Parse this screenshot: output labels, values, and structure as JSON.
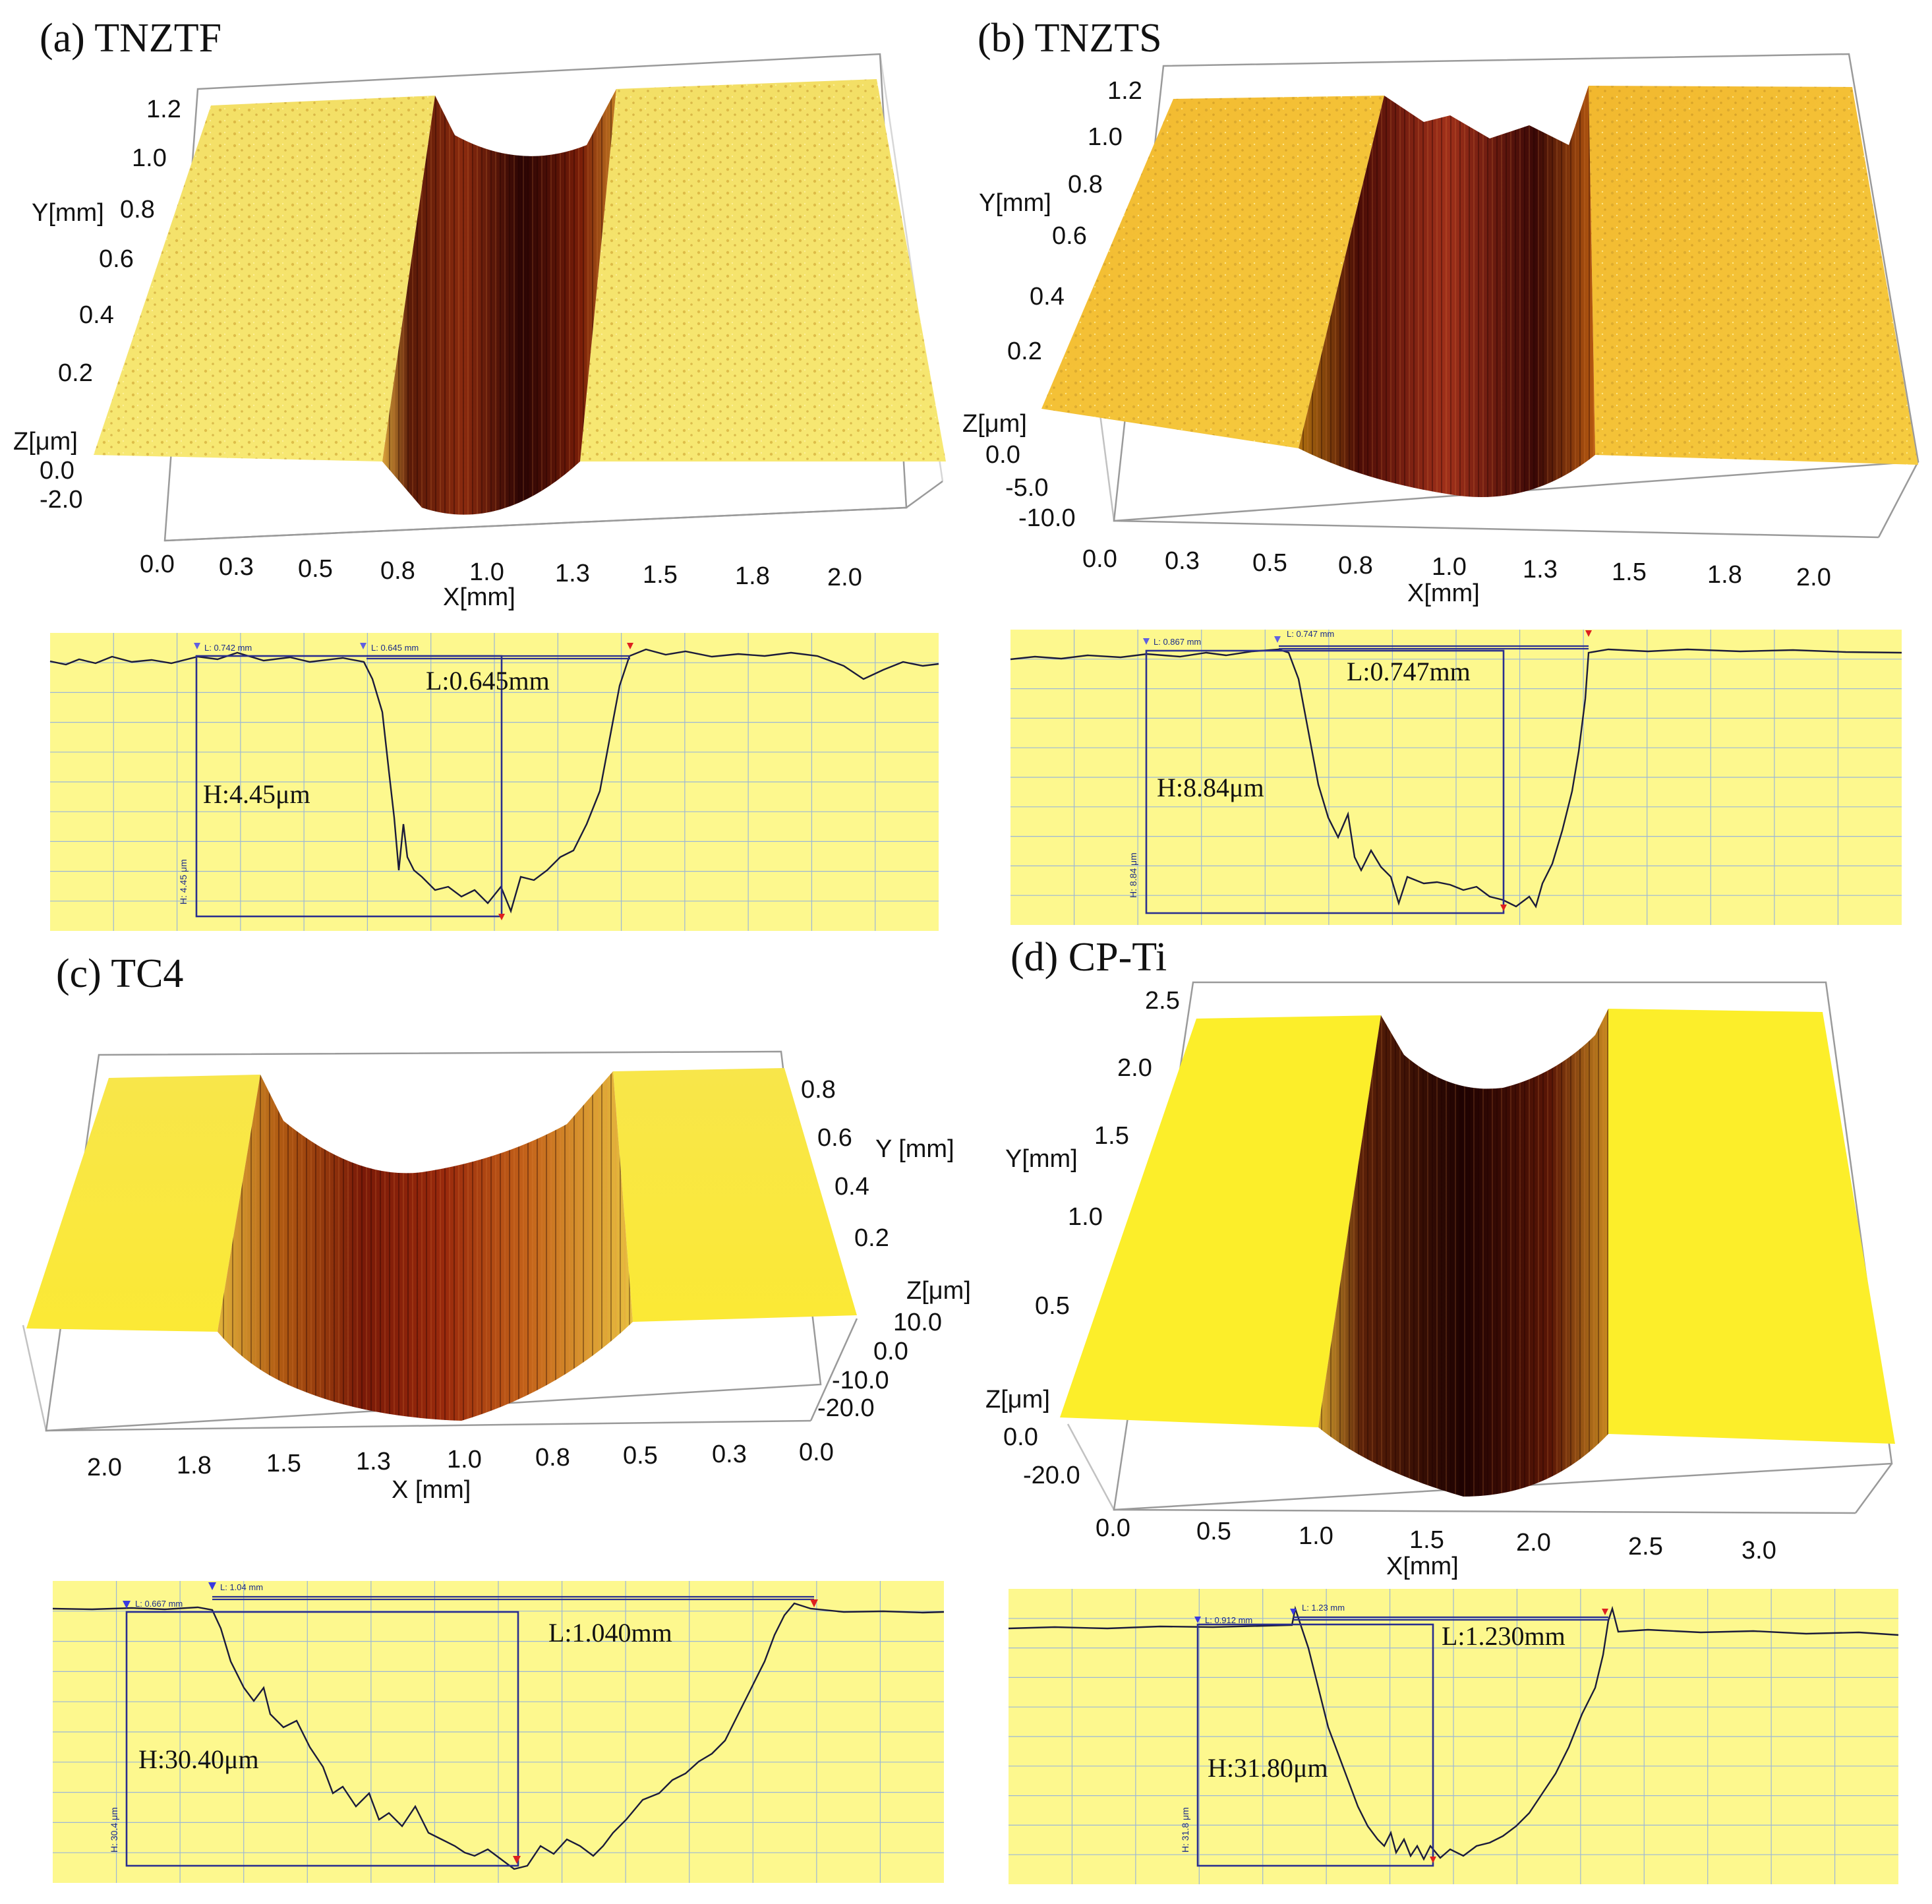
{
  "chart_data": [
    {
      "id": "a",
      "type": "surface3d",
      "title": "(a) TNZTF",
      "x_label": "X[mm]",
      "y_label": "Y[mm]",
      "z_label": "Z[μm]",
      "x_ticks": [
        "0.0",
        "0.3",
        "0.5",
        "0.8",
        "1.0",
        "1.3",
        "1.5",
        "1.8",
        "2.0"
      ],
      "y_ticks": [
        "1.2",
        "1.0",
        "0.8",
        "0.6",
        "0.4",
        "0.2"
      ],
      "z_ticks": [
        "0.0",
        "-2.0"
      ],
      "profile": {
        "type": "line",
        "width_label": "L:0.645mm",
        "depth_label": "H:4.45μm",
        "marker_l1": "L: 0.742 mm",
        "marker_l2": "L: 0.645 mm",
        "marker_h": "H: 4.45 μm",
        "width_mm": 0.645,
        "depth_um": 4.45
      }
    },
    {
      "id": "b",
      "type": "surface3d",
      "title": "(b) TNZTS",
      "x_label": "X[mm]",
      "y_label": "Y[mm]",
      "z_label": "Z[μm]",
      "x_ticks": [
        "0.0",
        "0.3",
        "0.5",
        "0.8",
        "1.0",
        "1.3",
        "1.5",
        "1.8",
        "2.0"
      ],
      "y_ticks": [
        "1.2",
        "1.0",
        "0.8",
        "0.6",
        "0.4",
        "0.2"
      ],
      "z_ticks": [
        "0.0",
        "-5.0",
        "-10.0"
      ],
      "profile": {
        "type": "line",
        "width_label": "L:0.747mm",
        "depth_label": "H:8.84μm",
        "marker_l1": "L: 0.867 mm",
        "marker_l2": "L: 0.747 mm",
        "marker_h": "H: 8.84 μm",
        "width_mm": 0.747,
        "depth_um": 8.84
      }
    },
    {
      "id": "c",
      "type": "surface3d",
      "title": "(c) TC4",
      "x_label": "X [mm]",
      "y_label": "Y [mm]",
      "z_label": "Z[μm]",
      "x_ticks": [
        "2.0",
        "1.8",
        "1.5",
        "1.3",
        "1.0",
        "0.8",
        "0.5",
        "0.3",
        "0.0"
      ],
      "y_ticks": [
        "0.8",
        "0.6",
        "0.4",
        "0.2"
      ],
      "z_ticks": [
        "10.0",
        "0.0",
        "-10.0",
        "-20.0"
      ],
      "profile": {
        "type": "line",
        "width_label": "L:1.040mm",
        "depth_label": "H:30.40μm",
        "marker_l1": "L: 0.667 mm",
        "marker_l2": "L: 1.04 mm",
        "marker_h": "H: 30.4 μm",
        "width_mm": 1.04,
        "depth_um": 30.4
      }
    },
    {
      "id": "d",
      "type": "surface3d",
      "title": "(d) CP-Ti",
      "x_label": "X[mm]",
      "y_label": "Y[mm]",
      "z_label": "Z[μm]",
      "x_ticks": [
        "0.0",
        "0.5",
        "1.0",
        "1.5",
        "2.0",
        "2.5",
        "3.0"
      ],
      "y_ticks": [
        "2.5",
        "2.0",
        "1.5",
        "1.0",
        "0.5"
      ],
      "z_ticks": [
        "0.0",
        "-20.0"
      ],
      "profile": {
        "type": "line",
        "width_label": "L:1.230mm",
        "depth_label": "H:31.80μm",
        "marker_l1": "L: 0.912 mm",
        "marker_l2": "L: 1.23 mm",
        "marker_h": "H: 31.8 μm",
        "width_mm": 1.23,
        "depth_um": 31.8
      }
    }
  ],
  "colors": {
    "surface_light": "#f6e56a",
    "surface_mid": "#f0c93a",
    "groove_dark": "#3a0606",
    "groove_mid": "#8c2408",
    "profile_bg": "#fdf88e",
    "grid": "#9db7d6"
  }
}
